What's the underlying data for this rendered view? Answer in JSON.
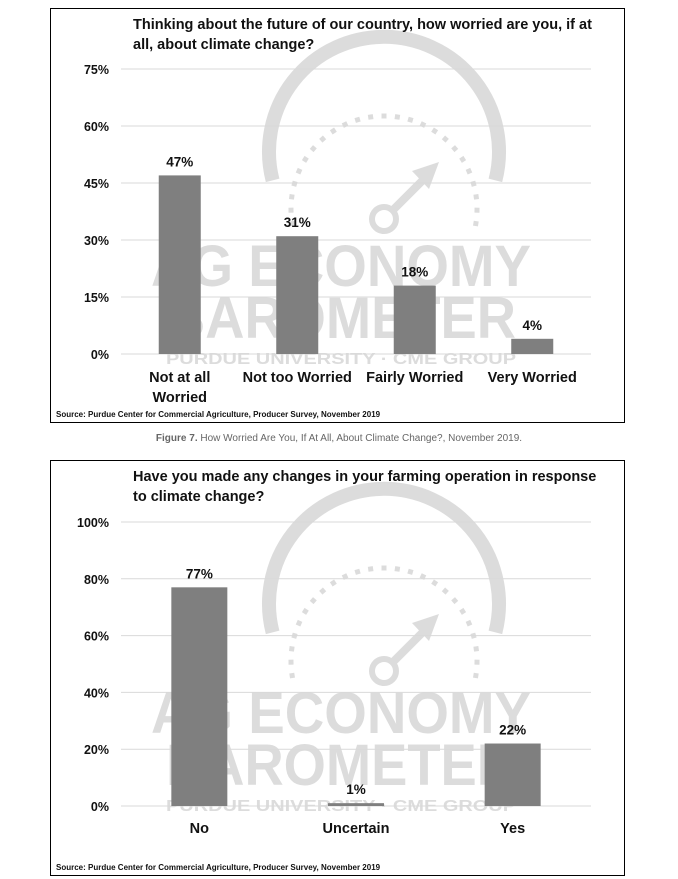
{
  "charts": [
    {
      "title": "Thinking about the future of our country, how worried are you, if at all, about climate change?",
      "source": "Source: Purdue Center for Commercial Agriculture, Producer Survey, November 2019",
      "watermark": {
        "line1": "AG ECONOMY",
        "line2": "BAROMETER",
        "line3": "PURDUE UNIVERSITY · CME GROUP"
      }
    },
    {
      "title": "Have you made any changes in your farming operation in response to climate change?",
      "source": "Source: Purdue Center for Commercial Agriculture, Producer Survey, November 2019",
      "watermark": {
        "line1": "AG ECONOMY",
        "line2": "BAROMETER",
        "line3": "PURDUE UNIVERSITY · CME GROUP"
      }
    }
  ],
  "caption": {
    "label": "Figure 7.",
    "text": " How Worried Are You, If At All, About Climate Change?, November 2019."
  },
  "colors": {
    "bar": "#7f7f7f",
    "grid": "#d9d9d9",
    "watermark": "#dcdcdc"
  },
  "chart_data": [
    {
      "type": "bar",
      "title": "Thinking about the future of our country, how worried are you, if at all, about climate change?",
      "categories": [
        "Not at all Worried",
        "Not too Worried",
        "Fairly Worried",
        "Very Worried"
      ],
      "category_lines": [
        [
          "Not at all",
          "Worried"
        ],
        [
          "Not too Worried"
        ],
        [
          "Fairly Worried"
        ],
        [
          "Very Worried"
        ]
      ],
      "values": [
        47,
        31,
        18,
        4
      ],
      "data_labels": [
        "47%",
        "31%",
        "18%",
        "4%"
      ],
      "yticks": [
        0,
        15,
        30,
        45,
        60,
        75
      ],
      "ytick_labels": [
        "0%",
        "15%",
        "30%",
        "45%",
        "60%",
        "75%"
      ],
      "ylim": [
        0,
        75
      ],
      "grid": true,
      "xlabel": "",
      "ylabel": ""
    },
    {
      "type": "bar",
      "title": "Have you made any changes in your farming operation in response to climate change?",
      "categories": [
        "No",
        "Uncertain",
        "Yes"
      ],
      "category_lines": [
        [
          "No"
        ],
        [
          "Uncertain"
        ],
        [
          "Yes"
        ]
      ],
      "values": [
        77,
        1,
        22
      ],
      "data_labels": [
        "77%",
        "1%",
        "22%"
      ],
      "yticks": [
        0,
        20,
        40,
        60,
        80,
        100
      ],
      "ytick_labels": [
        "0%",
        "20%",
        "40%",
        "60%",
        "80%",
        "100%"
      ],
      "ylim": [
        0,
        100
      ],
      "grid": true,
      "xlabel": "",
      "ylabel": ""
    }
  ]
}
